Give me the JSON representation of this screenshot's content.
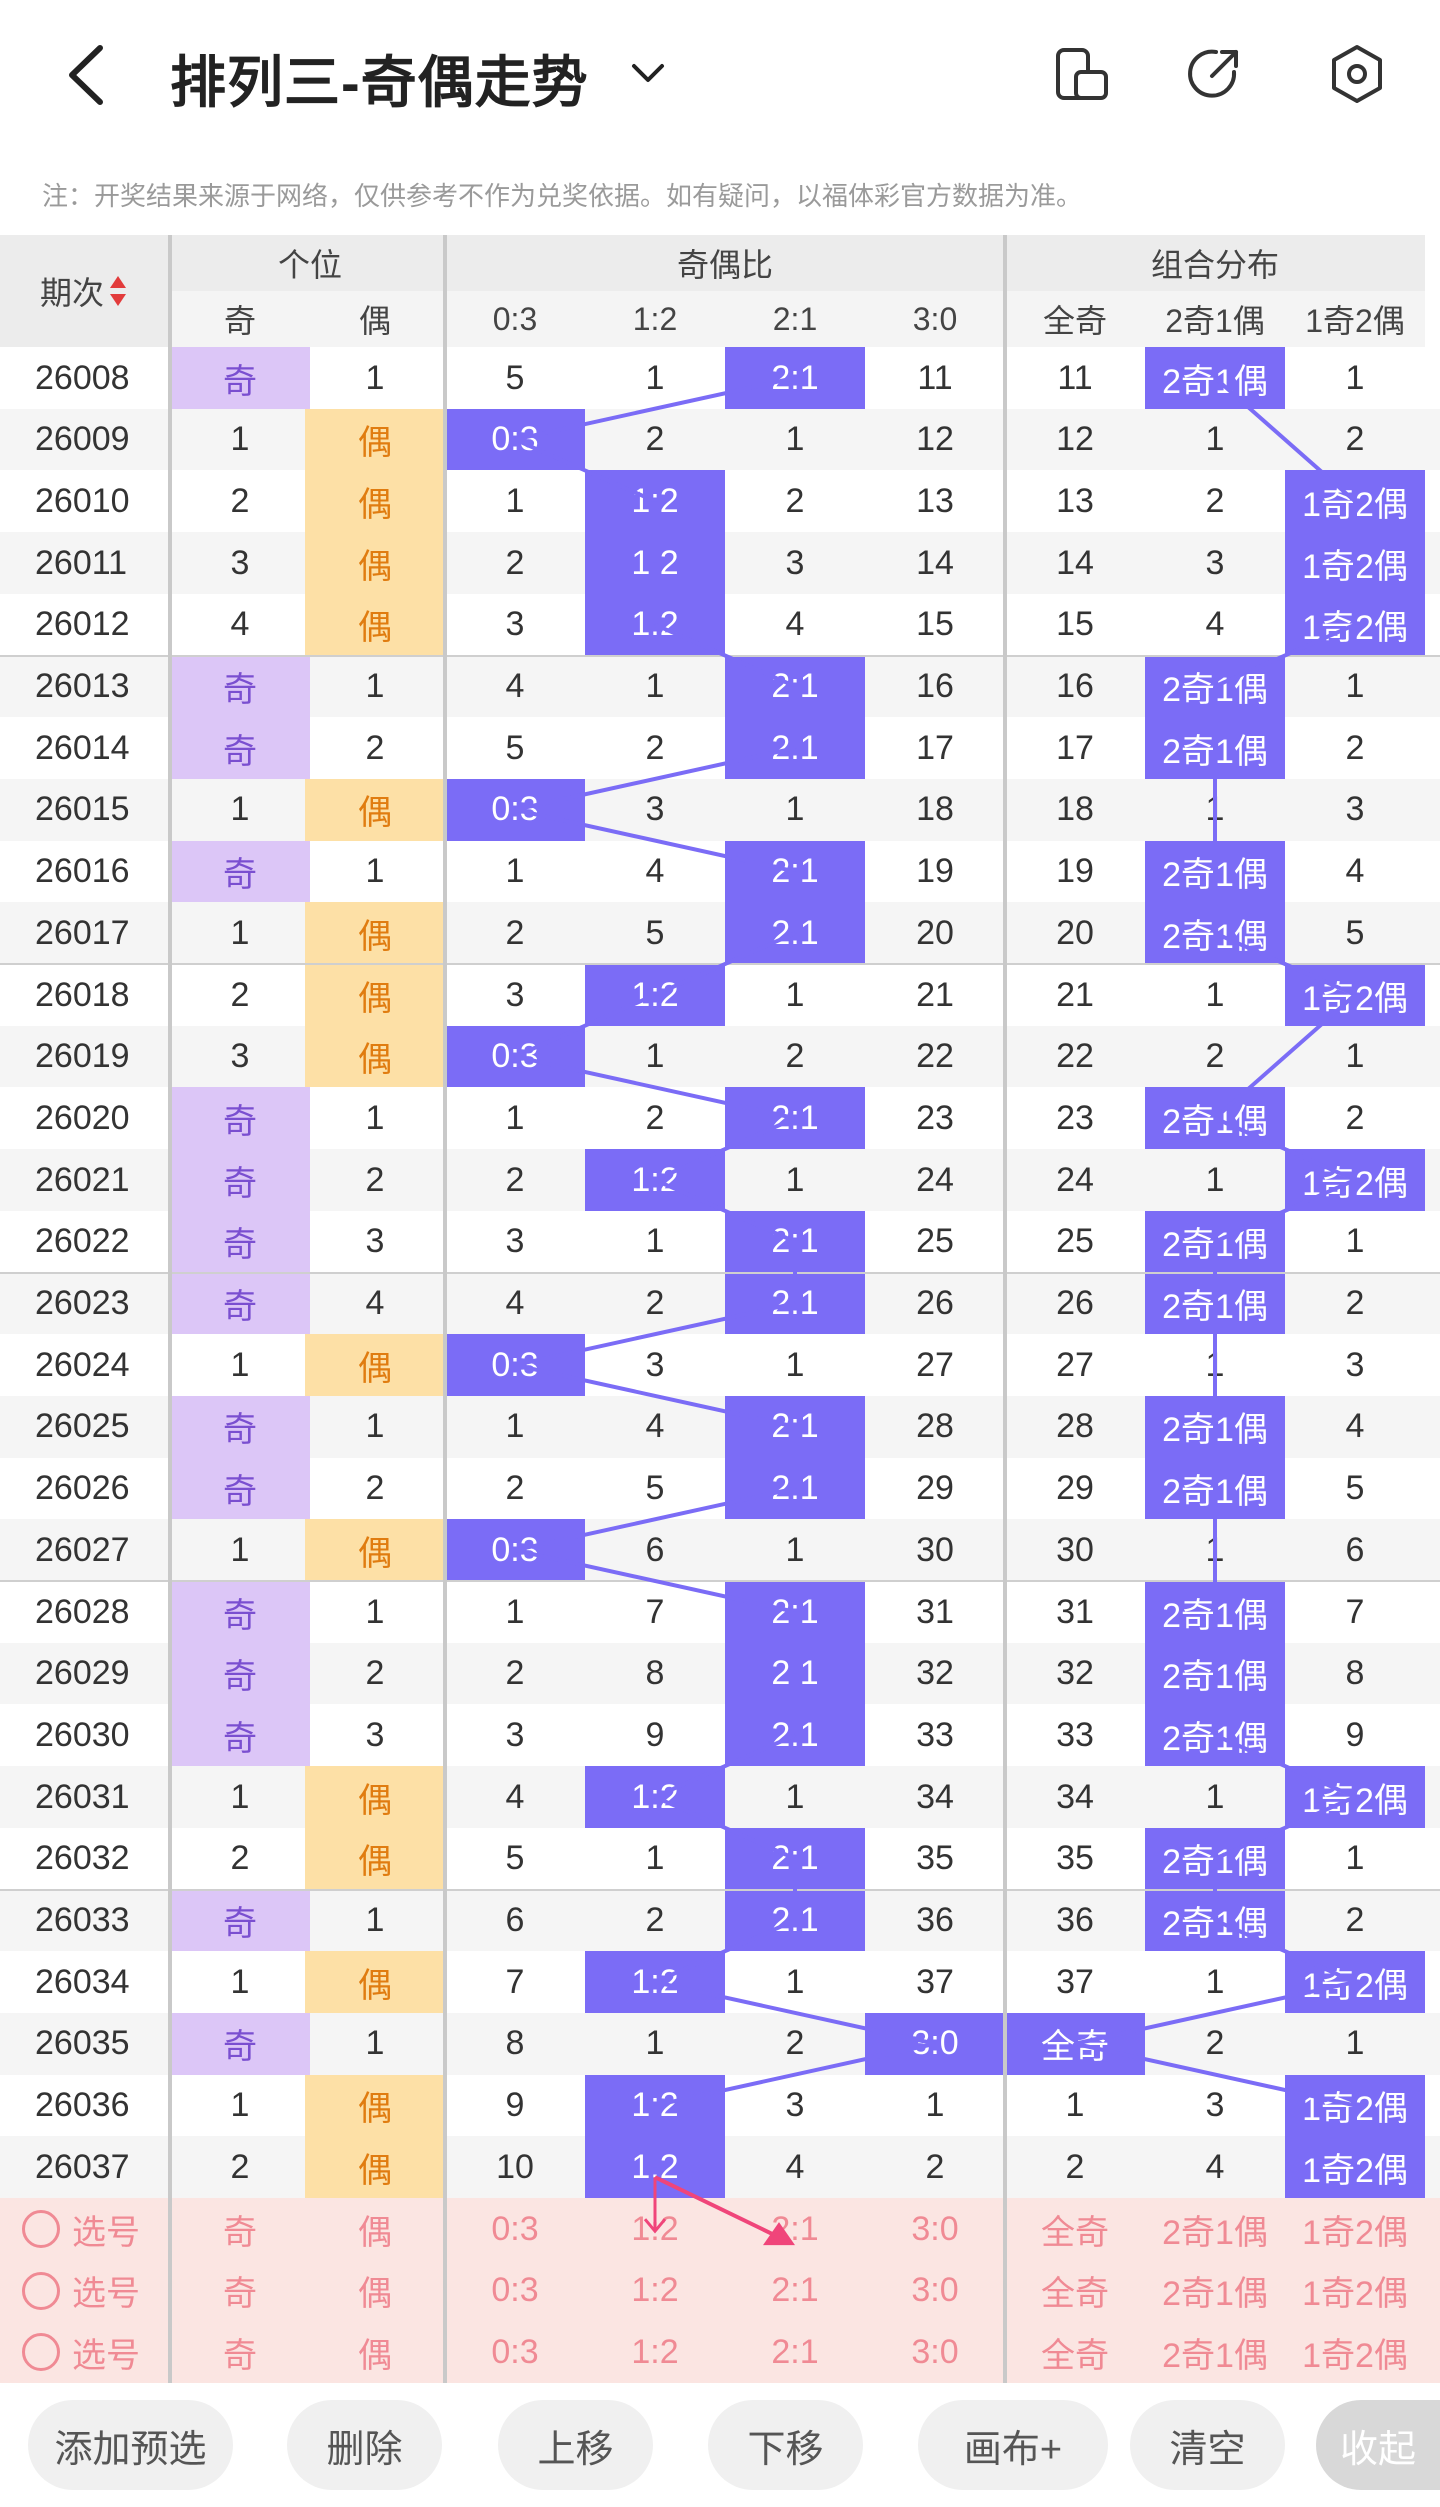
{
  "header": {
    "title": "排列三-奇偶走势",
    "notice": "注：开奖结果来源于网络，仅供参考不作为兑奖依据。如有疑问，以福体彩官方数据为准。"
  },
  "table": {
    "issue_header": "期次",
    "groups": [
      {
        "label": "个位",
        "columns": [
          "奇",
          "偶"
        ]
      },
      {
        "label": "奇偶比",
        "columns": [
          "0:3",
          "1:2",
          "2:1",
          "3:0"
        ]
      },
      {
        "label": "组合分布",
        "columns": [
          "全奇",
          "2奇1偶",
          "1奇2偶"
        ]
      }
    ],
    "rows": [
      {
        "issue": "26008",
        "cells": [
          "奇",
          "1",
          "5",
          "1",
          "2:1",
          "11",
          "11",
          "2奇1偶",
          "1"
        ],
        "hits": [
          0,
          4,
          7
        ]
      },
      {
        "issue": "26009",
        "cells": [
          "1",
          "偶",
          "0:3",
          "2",
          "1",
          "12",
          "12",
          "1",
          "2"
        ],
        "hits": [
          1,
          2
        ]
      },
      {
        "issue": "26010",
        "cells": [
          "2",
          "偶",
          "1",
          "1:2",
          "2",
          "13",
          "13",
          "2",
          "1奇2偶"
        ],
        "hits": [
          1,
          3,
          8
        ]
      },
      {
        "issue": "26011",
        "cells": [
          "3",
          "偶",
          "2",
          "1:2",
          "3",
          "14",
          "14",
          "3",
          "1奇2偶"
        ],
        "hits": [
          1,
          3,
          8
        ]
      },
      {
        "issue": "26012",
        "cells": [
          "4",
          "偶",
          "3",
          "1:2",
          "4",
          "15",
          "15",
          "4",
          "1奇2偶"
        ],
        "hits": [
          1,
          3,
          8
        ]
      },
      {
        "issue": "26013",
        "cells": [
          "奇",
          "1",
          "4",
          "1",
          "2:1",
          "16",
          "16",
          "2奇1偶",
          "1"
        ],
        "hits": [
          0,
          4,
          7
        ]
      },
      {
        "issue": "26014",
        "cells": [
          "奇",
          "2",
          "5",
          "2",
          "2:1",
          "17",
          "17",
          "2奇1偶",
          "2"
        ],
        "hits": [
          0,
          4,
          7
        ]
      },
      {
        "issue": "26015",
        "cells": [
          "1",
          "偶",
          "0:3",
          "3",
          "1",
          "18",
          "18",
          "1",
          "3"
        ],
        "hits": [
          1,
          2
        ]
      },
      {
        "issue": "26016",
        "cells": [
          "奇",
          "1",
          "1",
          "4",
          "2:1",
          "19",
          "19",
          "2奇1偶",
          "4"
        ],
        "hits": [
          0,
          4,
          7
        ]
      },
      {
        "issue": "26017",
        "cells": [
          "1",
          "偶",
          "2",
          "5",
          "2:1",
          "20",
          "20",
          "2奇1偶",
          "5"
        ],
        "hits": [
          1,
          4,
          7
        ]
      },
      {
        "issue": "26018",
        "cells": [
          "2",
          "偶",
          "3",
          "1:2",
          "1",
          "21",
          "21",
          "1",
          "1奇2偶"
        ],
        "hits": [
          1,
          3,
          8
        ]
      },
      {
        "issue": "26019",
        "cells": [
          "3",
          "偶",
          "0:3",
          "1",
          "2",
          "22",
          "22",
          "2",
          "1"
        ],
        "hits": [
          1,
          2
        ]
      },
      {
        "issue": "26020",
        "cells": [
          "奇",
          "1",
          "1",
          "2",
          "2:1",
          "23",
          "23",
          "2奇1偶",
          "2"
        ],
        "hits": [
          0,
          4,
          7
        ]
      },
      {
        "issue": "26021",
        "cells": [
          "奇",
          "2",
          "2",
          "1:2",
          "1",
          "24",
          "24",
          "1",
          "1奇2偶"
        ],
        "hits": [
          0,
          3,
          8
        ]
      },
      {
        "issue": "26022",
        "cells": [
          "奇",
          "3",
          "3",
          "1",
          "2:1",
          "25",
          "25",
          "2奇1偶",
          "1"
        ],
        "hits": [
          0,
          4,
          7
        ]
      },
      {
        "issue": "26023",
        "cells": [
          "奇",
          "4",
          "4",
          "2",
          "2:1",
          "26",
          "26",
          "2奇1偶",
          "2"
        ],
        "hits": [
          0,
          4,
          7
        ]
      },
      {
        "issue": "26024",
        "cells": [
          "1",
          "偶",
          "0:3",
          "3",
          "1",
          "27",
          "27",
          "1",
          "3"
        ],
        "hits": [
          1,
          2
        ]
      },
      {
        "issue": "26025",
        "cells": [
          "奇",
          "1",
          "1",
          "4",
          "2:1",
          "28",
          "28",
          "2奇1偶",
          "4"
        ],
        "hits": [
          0,
          4,
          7
        ]
      },
      {
        "issue": "26026",
        "cells": [
          "奇",
          "2",
          "2",
          "5",
          "2:1",
          "29",
          "29",
          "2奇1偶",
          "5"
        ],
        "hits": [
          0,
          4,
          7
        ]
      },
      {
        "issue": "26027",
        "cells": [
          "1",
          "偶",
          "0:3",
          "6",
          "1",
          "30",
          "30",
          "1",
          "6"
        ],
        "hits": [
          1,
          2
        ]
      },
      {
        "issue": "26028",
        "cells": [
          "奇",
          "1",
          "1",
          "7",
          "2:1",
          "31",
          "31",
          "2奇1偶",
          "7"
        ],
        "hits": [
          0,
          4,
          7
        ]
      },
      {
        "issue": "26029",
        "cells": [
          "奇",
          "2",
          "2",
          "8",
          "2:1",
          "32",
          "32",
          "2奇1偶",
          "8"
        ],
        "hits": [
          0,
          4,
          7
        ]
      },
      {
        "issue": "26030",
        "cells": [
          "奇",
          "3",
          "3",
          "9",
          "2:1",
          "33",
          "33",
          "2奇1偶",
          "9"
        ],
        "hits": [
          0,
          4,
          7
        ]
      },
      {
        "issue": "26031",
        "cells": [
          "1",
          "偶",
          "4",
          "1:2",
          "1",
          "34",
          "34",
          "1",
          "1奇2偶"
        ],
        "hits": [
          1,
          3,
          8
        ]
      },
      {
        "issue": "26032",
        "cells": [
          "2",
          "偶",
          "5",
          "1",
          "2:1",
          "35",
          "35",
          "2奇1偶",
          "1"
        ],
        "hits": [
          1,
          4,
          7
        ]
      },
      {
        "issue": "26033",
        "cells": [
          "奇",
          "1",
          "6",
          "2",
          "2:1",
          "36",
          "36",
          "2奇1偶",
          "2"
        ],
        "hits": [
          0,
          4,
          7
        ]
      },
      {
        "issue": "26034",
        "cells": [
          "1",
          "偶",
          "7",
          "1:2",
          "1",
          "37",
          "37",
          "1",
          "1奇2偶"
        ],
        "hits": [
          1,
          3,
          8
        ]
      },
      {
        "issue": "26035",
        "cells": [
          "奇",
          "1",
          "8",
          "1",
          "2",
          "3:0",
          "全奇",
          "2",
          "1"
        ],
        "hits": [
          0,
          5,
          6
        ]
      },
      {
        "issue": "26036",
        "cells": [
          "1",
          "偶",
          "9",
          "1:2",
          "3",
          "1",
          "1",
          "3",
          "1奇2偶"
        ],
        "hits": [
          1,
          3,
          8
        ]
      },
      {
        "issue": "26037",
        "cells": [
          "2",
          "偶",
          "10",
          "1:2",
          "4",
          "2",
          "2",
          "4",
          "1奇2偶"
        ],
        "hits": [
          1,
          3,
          8
        ]
      }
    ],
    "select_rows": [
      {
        "label": "选号",
        "cells": [
          "奇",
          "偶",
          "0:3",
          "1:2",
          "2:1",
          "3:0",
          "全奇",
          "2奇1偶",
          "1奇2偶"
        ]
      },
      {
        "label": "选号",
        "cells": [
          "奇",
          "偶",
          "0:3",
          "1:2",
          "2:1",
          "3:0",
          "全奇",
          "2奇1偶",
          "1奇2偶"
        ]
      },
      {
        "label": "选号",
        "cells": [
          "奇",
          "偶",
          "0:3",
          "1:2",
          "2:1",
          "3:0",
          "全奇",
          "2奇1偶",
          "1奇2偶"
        ]
      }
    ]
  },
  "toolbar": {
    "buttons": [
      "添加预选",
      "删除",
      "上移",
      "下移",
      "画布+",
      "清空"
    ],
    "collapse": "收起"
  },
  "colors": {
    "accent": "#7b6cf6",
    "odd_hit": "#dcc6f7",
    "even_hit": "#fde0a6",
    "select_bg": "#fbe5e2",
    "select_text": "#f08a94",
    "arrow": "#f0457a"
  }
}
